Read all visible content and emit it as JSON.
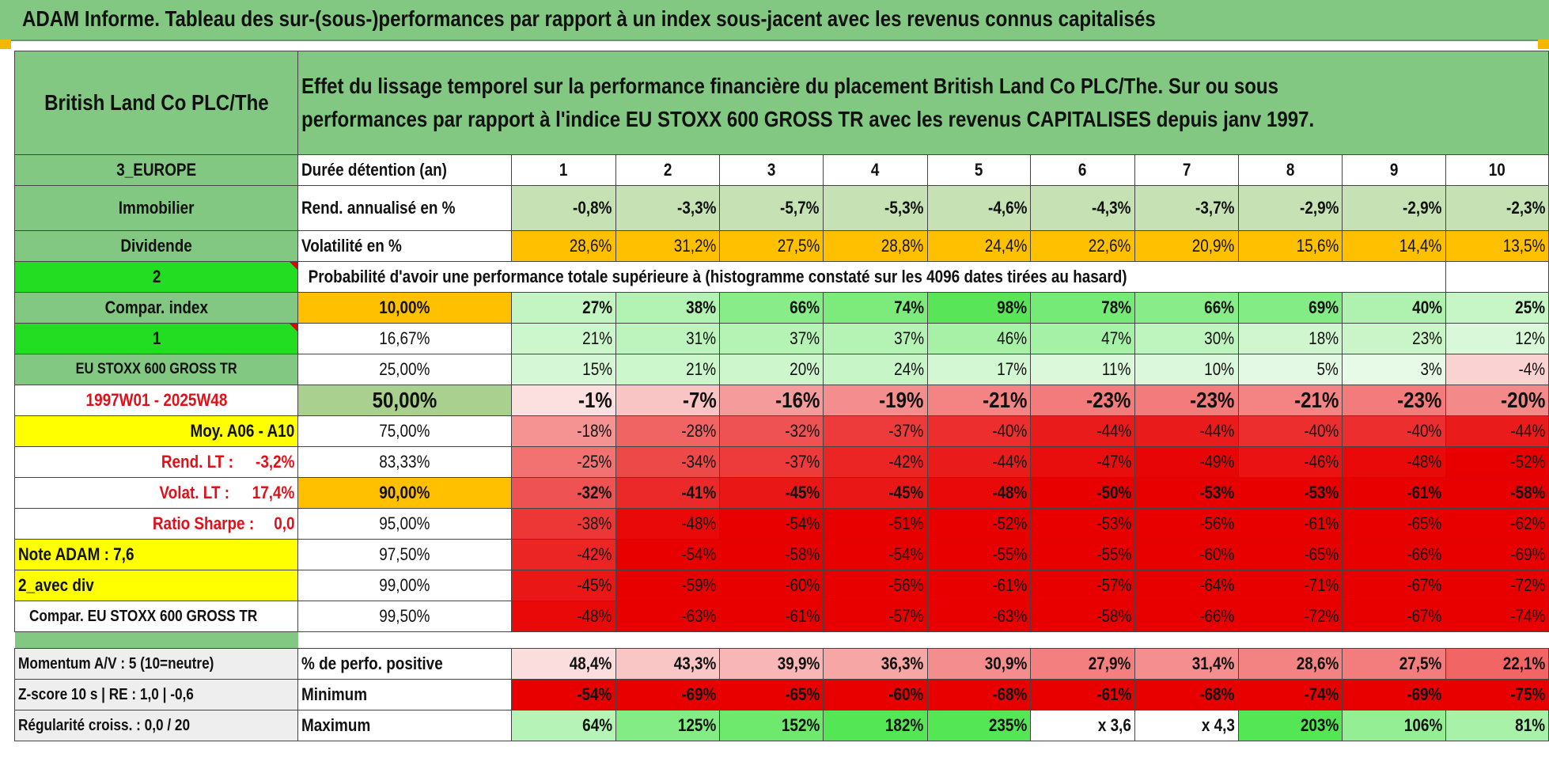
{
  "title": "ADAM Informe. Tableau des sur-(sous-)performances par rapport à un index sous-jacent avec les revenus connus capitalisés",
  "header": {
    "asset": "British Land Co PLC/The",
    "description": "Effet du lissage temporel sur la performance financière du placement British Land Co PLC/The. Sur ou sous performances par rapport à l'indice EU STOXX 600 GROSS TR avec les revenus CAPITALISES depuis janv 1997."
  },
  "left": {
    "region": "3_EUROPE",
    "sector": "Immobilier",
    "type": "Dividende",
    "selector1": "2",
    "compar_label": "Compar. index",
    "selector2": "1",
    "index_name": "EU STOXX 600 GROSS TR",
    "period": "1997W01 - 2025W48",
    "moy": "Moy. A06 - A10",
    "rend_lt_label": "Rend. LT :",
    "rend_lt_value": "-3,2%",
    "volat_lt_label": "Volat. LT :",
    "volat_lt_value": "17,4%",
    "sharpe_label": "Ratio Sharpe :",
    "sharpe_value": "0,0",
    "note": "Note ADAM : 7,6",
    "avec_div": "2_avec div",
    "compar_full": "Compar. EU STOXX 600 GROSS TR",
    "momentum": "Momentum A/V : 5 (10=neutre)",
    "zscore": "Z-score 10 s | RE : 1,0 | -0,6",
    "regularite": "Régularité croiss. : 0,0 / 20"
  },
  "labels": {
    "duree": "Durée détention (an)",
    "rend": "Rend. annualisé en %",
    "vol": "Volatilité en %",
    "proba": "Probabilité d'avoir une performance totale supérieure à (histogramme constaté sur les 4096 dates tirées au hasard)",
    "pct_pos": "% de perfo. positive",
    "minimum": "Minimum",
    "maximum": "Maximum"
  },
  "years": [
    "1",
    "2",
    "3",
    "4",
    "5",
    "6",
    "7",
    "8",
    "9",
    "10"
  ],
  "rend": [
    "-0,8%",
    "-3,3%",
    "-5,7%",
    "-5,3%",
    "-4,6%",
    "-4,3%",
    "-3,7%",
    "-2,9%",
    "-2,9%",
    "-2,3%"
  ],
  "vol": [
    "28,6%",
    "31,2%",
    "27,5%",
    "28,8%",
    "24,4%",
    "22,6%",
    "20,9%",
    "15,6%",
    "14,4%",
    "13,5%"
  ],
  "prob_rows": [
    {
      "pct": "10,00%",
      "vals": [
        "27%",
        "38%",
        "66%",
        "74%",
        "98%",
        "78%",
        "66%",
        "69%",
        "40%",
        "25%"
      ]
    },
    {
      "pct": "16,67%",
      "vals": [
        "21%",
        "31%",
        "37%",
        "37%",
        "46%",
        "47%",
        "30%",
        "18%",
        "23%",
        "12%"
      ]
    },
    {
      "pct": "25,00%",
      "vals": [
        "15%",
        "21%",
        "20%",
        "24%",
        "17%",
        "11%",
        "10%",
        "5%",
        "3%",
        "-4%"
      ]
    },
    {
      "pct": "50,00%",
      "vals": [
        "-1%",
        "-7%",
        "-16%",
        "-19%",
        "-21%",
        "-23%",
        "-23%",
        "-21%",
        "-23%",
        "-20%"
      ]
    },
    {
      "pct": "75,00%",
      "vals": [
        "-18%",
        "-28%",
        "-32%",
        "-37%",
        "-40%",
        "-44%",
        "-44%",
        "-40%",
        "-40%",
        "-44%"
      ]
    },
    {
      "pct": "83,33%",
      "vals": [
        "-25%",
        "-34%",
        "-37%",
        "-42%",
        "-44%",
        "-47%",
        "-49%",
        "-46%",
        "-48%",
        "-52%"
      ]
    },
    {
      "pct": "90,00%",
      "vals": [
        "-32%",
        "-41%",
        "-45%",
        "-45%",
        "-48%",
        "-50%",
        "-53%",
        "-53%",
        "-61%",
        "-58%"
      ]
    },
    {
      "pct": "95,00%",
      "vals": [
        "-38%",
        "-48%",
        "-54%",
        "-51%",
        "-52%",
        "-53%",
        "-56%",
        "-61%",
        "-65%",
        "-62%"
      ]
    },
    {
      "pct": "97,50%",
      "vals": [
        "-42%",
        "-54%",
        "-58%",
        "-54%",
        "-55%",
        "-55%",
        "-60%",
        "-65%",
        "-66%",
        "-69%"
      ]
    },
    {
      "pct": "99,00%",
      "vals": [
        "-45%",
        "-59%",
        "-60%",
        "-56%",
        "-61%",
        "-57%",
        "-64%",
        "-71%",
        "-67%",
        "-72%"
      ]
    },
    {
      "pct": "99,50%",
      "vals": [
        "-48%",
        "-63%",
        "-61%",
        "-57%",
        "-63%",
        "-58%",
        "-66%",
        "-72%",
        "-67%",
        "-74%"
      ]
    }
  ],
  "pct_pos": [
    "48,4%",
    "43,3%",
    "39,9%",
    "36,3%",
    "30,9%",
    "27,9%",
    "31,4%",
    "28,6%",
    "27,5%",
    "22,1%"
  ],
  "minimum": [
    "-54%",
    "-69%",
    "-65%",
    "-60%",
    "-68%",
    "-61%",
    "-68%",
    "-74%",
    "-69%",
    "-75%"
  ],
  "maximum": [
    "64%",
    "125%",
    "152%",
    "182%",
    "235%",
    "x 3,6",
    "x 4,3",
    "203%",
    "106%",
    "81%"
  ],
  "colors": {
    "header_green": "#82c882",
    "bright_green": "#22dd22",
    "orange": "#ffc000",
    "yellow": "#ffff00",
    "label_red": "#e0101a"
  }
}
